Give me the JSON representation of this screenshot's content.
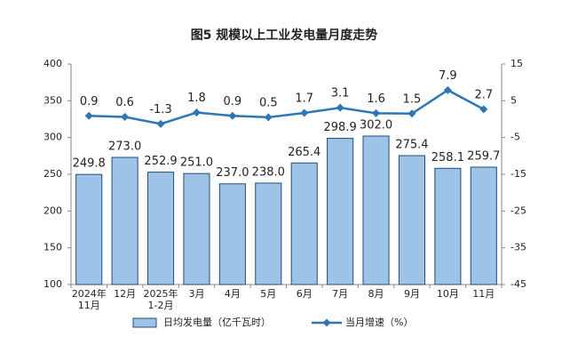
{
  "chart_data": {
    "type": "bar-line",
    "title": "图5  规模以上工业发电量月度走势",
    "categories": [
      [
        "2024年",
        "11月"
      ],
      [
        "12月"
      ],
      [
        "2025年",
        "1-2月"
      ],
      [
        "3月"
      ],
      [
        "4月"
      ],
      [
        "5月"
      ],
      [
        "6月"
      ],
      [
        "7月"
      ],
      [
        "8月"
      ],
      [
        "9月"
      ],
      [
        "10月"
      ],
      [
        "11月"
      ]
    ],
    "series": [
      {
        "name": "日均发电量（亿千瓦时）",
        "type": "bar",
        "color": "#9dc3e6",
        "edge": "#1f4e79",
        "values": [
          249.8,
          273.0,
          252.9,
          251.0,
          237.0,
          238.0,
          265.4,
          298.9,
          302.0,
          275.4,
          258.1,
          259.7
        ],
        "value_labels": [
          "249.8",
          "273.0",
          "252.9",
          "251.0",
          "237.0",
          "238.0",
          "265.4",
          "298.9",
          "302.0",
          "275.4",
          "258.1",
          "259.7"
        ]
      },
      {
        "name": "当月增速（%）",
        "type": "line",
        "axis": "y2",
        "color": "#2e75b6",
        "values": [
          0.9,
          0.6,
          -1.3,
          1.8,
          0.9,
          0.5,
          1.7,
          3.1,
          1.6,
          1.5,
          7.9,
          2.7
        ]
      }
    ],
    "ylim": [
      100,
      400
    ],
    "yticks": [
      100,
      150,
      200,
      250,
      300,
      350,
      400
    ],
    "y2lim": [
      -45,
      15
    ],
    "y2ticks": [
      -45,
      -35,
      -25,
      -15,
      -5,
      5,
      15
    ],
    "grid": false
  }
}
